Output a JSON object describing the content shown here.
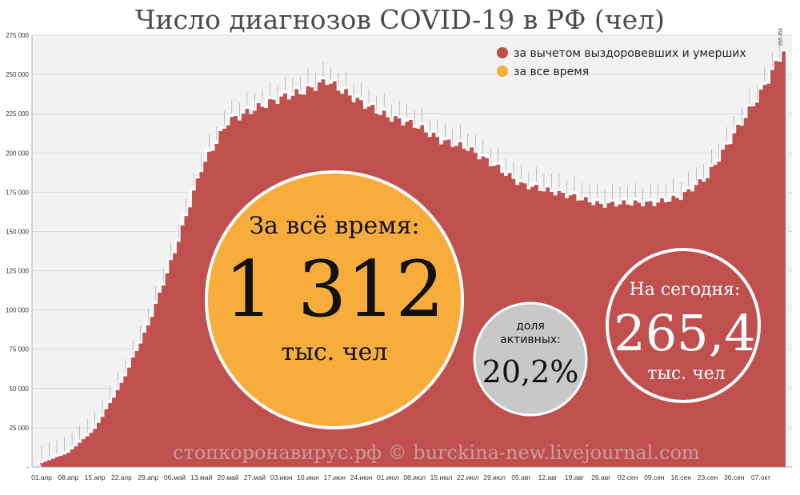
{
  "chart_data": {
    "type": "area",
    "title": "Число диагнозов COVID-19 в РФ (чел)",
    "ylim": [
      0,
      275000
    ],
    "y_ticks": [
      "-",
      "25 000",
      "50 000",
      "75 000",
      "100 000",
      "125 000",
      "150 000",
      "175 000",
      "200 000",
      "225 000",
      "250 000",
      "275 000"
    ],
    "x_ticks": [
      "01.апр",
      "08.апр",
      "15.апр",
      "22.апр",
      "29.апр",
      "06.май",
      "13.май",
      "20.май",
      "27.май",
      "03.июн",
      "10.июн",
      "17.июн",
      "24.июн",
      "01.июл",
      "08.июл",
      "15.июл",
      "22.июл",
      "29.июл",
      "05.авг",
      "12.авг",
      "19.авг",
      "26.авг",
      "02.сен",
      "09.сен",
      "16.сен",
      "23.сен",
      "30.сен",
      "07.окт"
    ],
    "legend_position": "top-right",
    "grid": true,
    "series": [
      {
        "name": "за вычетом выздоровевших и умерших",
        "color": "#c0504d"
      },
      {
        "name": "за все время",
        "color": "#f7ac3b"
      }
    ],
    "active_series_points": [
      [
        "01.апр",
        2500
      ],
      [
        "08.апр",
        9000
      ],
      [
        "15.апр",
        24000
      ],
      [
        "22.апр",
        53000
      ],
      [
        "29.апр",
        90000
      ],
      [
        "06.май",
        137000
      ],
      [
        "13.май",
        190000
      ],
      [
        "20.май",
        220000
      ],
      [
        "27.май",
        228000
      ],
      [
        "03.июн",
        235000
      ],
      [
        "10.июн",
        240000
      ],
      [
        "15.июн",
        246000
      ],
      [
        "20.июн",
        238000
      ],
      [
        "24.июн",
        232000
      ],
      [
        "01.июл",
        223000
      ],
      [
        "08.июл",
        218000
      ],
      [
        "15.июл",
        208000
      ],
      [
        "22.июл",
        203000
      ],
      [
        "29.июл",
        192000
      ],
      [
        "05.авг",
        180000
      ],
      [
        "12.авг",
        176000
      ],
      [
        "19.авг",
        172000
      ],
      [
        "26.авг",
        167000
      ],
      [
        "02.сен",
        168000
      ],
      [
        "09.сен",
        168000
      ],
      [
        "16.сен",
        172000
      ],
      [
        "23.сен",
        185000
      ],
      [
        "30.сен",
        212000
      ],
      [
        "07.окт",
        238000
      ],
      [
        "13.окт",
        265353
      ]
    ],
    "last_value_label": "265 353",
    "totals": {
      "all_time_label": "За всё время:",
      "all_time_value": "1 312",
      "all_time_unit": "тыс. чел",
      "share_label_line1": "доля",
      "share_label_line2": "активных:",
      "share_value": "20,2%",
      "today_label": "На сегодня:",
      "today_value": "265,4",
      "today_unit": "тыс. чел"
    },
    "watermark": "стопкоронавирус.рф © burckina-new.livejournal.com"
  }
}
